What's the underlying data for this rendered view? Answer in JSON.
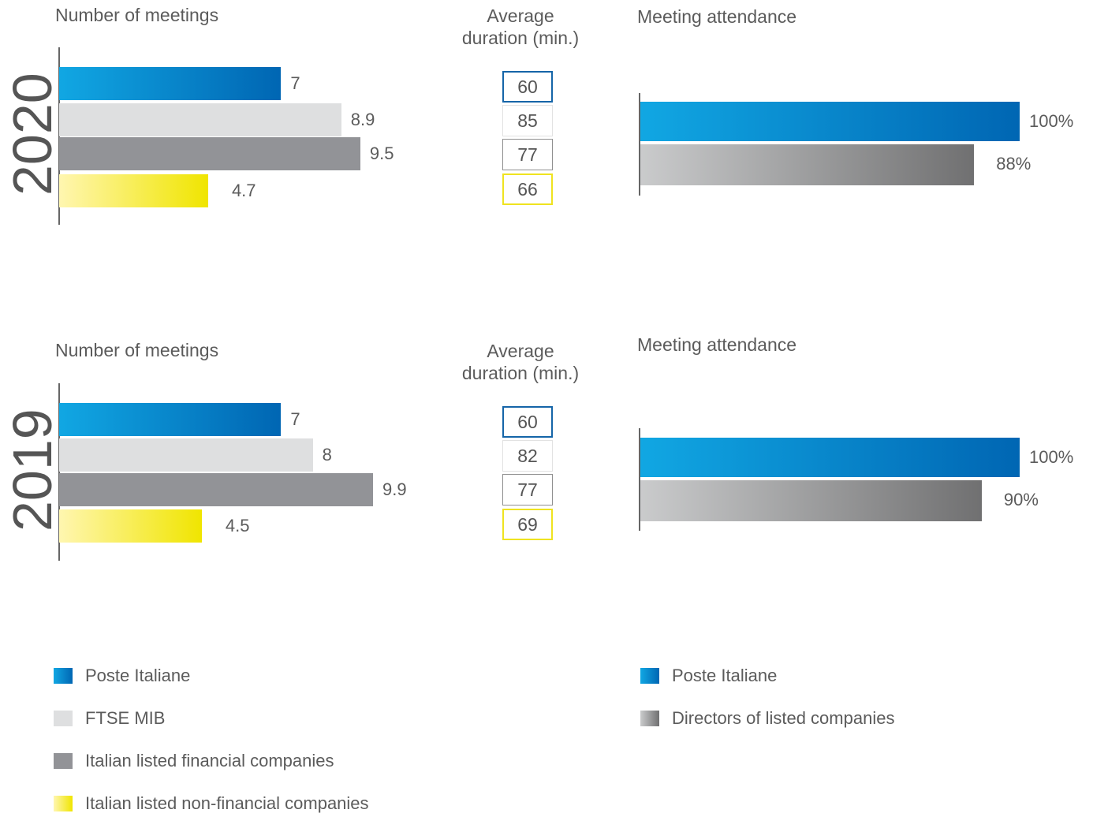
{
  "colors": {
    "poste": "#0066b3",
    "ftse": "#dedfe0",
    "financial": "#929397",
    "nonfinancial": "#f0e500",
    "directors": "#707071"
  },
  "chart_data": [
    {
      "type": "bar",
      "year": "2020",
      "title": "Number of meetings",
      "categories": [
        "Poste Italiane",
        "FTSE MIB",
        "Italian listed financial companies",
        "Italian listed non-financial companies"
      ],
      "values": [
        7,
        8.9,
        9.5,
        4.7
      ],
      "value_labels": [
        "7",
        "8.9",
        "9.5",
        "4.7"
      ]
    },
    {
      "type": "table",
      "year": "2020",
      "title": "Average duration (min.)",
      "categories": [
        "Poste Italiane",
        "FTSE MIB",
        "Italian listed financial companies",
        "Italian listed non-financial companies"
      ],
      "values": [
        60,
        85,
        77,
        66
      ]
    },
    {
      "type": "bar",
      "year": "2020",
      "title": "Meeting attendance",
      "categories": [
        "Poste Italiane",
        "Directors of listed companies"
      ],
      "values": [
        100,
        88
      ],
      "value_labels": [
        "100%",
        "88%"
      ]
    },
    {
      "type": "bar",
      "year": "2019",
      "title": "Number of meetings",
      "categories": [
        "Poste Italiane",
        "FTSE MIB",
        "Italian listed financial companies",
        "Italian listed non-financial companies"
      ],
      "values": [
        7,
        8,
        9.9,
        4.5
      ],
      "value_labels": [
        "7",
        "8",
        "9.9",
        "4.5"
      ]
    },
    {
      "type": "table",
      "year": "2019",
      "title": "Average duration (min.)",
      "categories": [
        "Poste Italiane",
        "FTSE MIB",
        "Italian listed financial companies",
        "Italian listed non-financial companies"
      ],
      "values": [
        60,
        82,
        77,
        69
      ]
    },
    {
      "type": "bar",
      "year": "2019",
      "title": "Meeting attendance",
      "categories": [
        "Poste Italiane",
        "Directors of listed companies"
      ],
      "values": [
        100,
        90
      ],
      "value_labels": [
        "100%",
        "90%"
      ]
    }
  ],
  "sections": [
    {
      "year": "2020",
      "meetings_title": "Number of meetings",
      "duration_title_line1": "Average",
      "duration_title_line2": "duration (min.)",
      "attendance_title": "Meeting attendance"
    },
    {
      "year": "2019",
      "meetings_title": "Number of meetings",
      "duration_title_line1": "Average",
      "duration_title_line2": "duration (min.)",
      "attendance_title": "Meeting attendance"
    }
  ],
  "legend_left": [
    "Poste Italiane",
    "FTSE MIB",
    "Italian listed financial companies",
    "Italian listed non-financial companies"
  ],
  "legend_right": [
    "Poste Italiane",
    "Directors of listed companies"
  ]
}
